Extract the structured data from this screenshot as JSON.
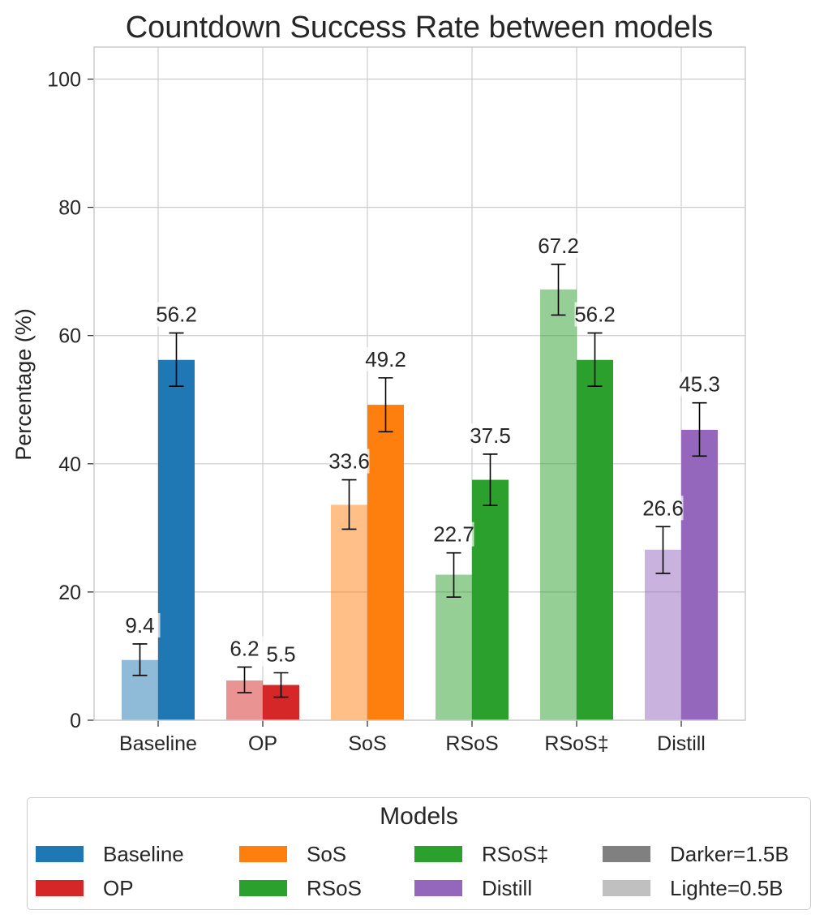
{
  "chart_data": {
    "type": "bar",
    "title": "Countdown Success Rate between models",
    "xlabel": "",
    "ylabel": "Percentage (%)",
    "ylim": [
      0,
      105
    ],
    "yticks": [
      0,
      20,
      40,
      60,
      80,
      100
    ],
    "grid": true,
    "categories": [
      "Baseline",
      "OP",
      "SoS",
      "RSoS",
      "RSoS‡",
      "Distill"
    ],
    "colors": [
      "#1f77b4",
      "#d62728",
      "#ff7f0e",
      "#2ca02c",
      "#2ca02c",
      "#9467bd"
    ],
    "series": [
      {
        "name": "Lighte=0.5B",
        "values": [
          9.4,
          6.2,
          33.6,
          22.7,
          67.2,
          26.6
        ],
        "labels": [
          "9.4",
          "6.2",
          "33.6",
          "22.7",
          "67.2",
          "26.6"
        ],
        "error_low": [
          7.0,
          4.3,
          29.8,
          19.2,
          63.2,
          22.9
        ],
        "error_high": [
          11.9,
          8.3,
          37.5,
          26.1,
          71.1,
          30.2
        ]
      },
      {
        "name": "Darker=1.5B",
        "values": [
          56.2,
          5.5,
          49.2,
          37.5,
          56.2,
          45.3
        ],
        "labels": [
          "56.2",
          "5.5",
          "49.2",
          "37.5",
          "56.2",
          "45.3"
        ],
        "error_low": [
          52.1,
          3.6,
          45.0,
          33.5,
          52.1,
          41.2
        ],
        "error_high": [
          60.4,
          7.4,
          53.4,
          41.5,
          60.4,
          49.5
        ]
      }
    ],
    "legend": {
      "title": "Models",
      "placement": "bottom",
      "entries": [
        {
          "label": "Baseline",
          "color": "#1f77b4"
        },
        {
          "label": "OP",
          "color": "#d62728"
        },
        {
          "label": "SoS",
          "color": "#ff7f0e"
        },
        {
          "label": "RSoS",
          "color": "#2ca02c"
        },
        {
          "label": "RSoS‡",
          "color": "#2ca02c"
        },
        {
          "label": "Distill",
          "color": "#9467bd"
        },
        {
          "label": "Darker=1.5B",
          "color": "#808080"
        },
        {
          "label": "Lighte=0.5B",
          "color": "#c0c0c0"
        }
      ]
    }
  }
}
